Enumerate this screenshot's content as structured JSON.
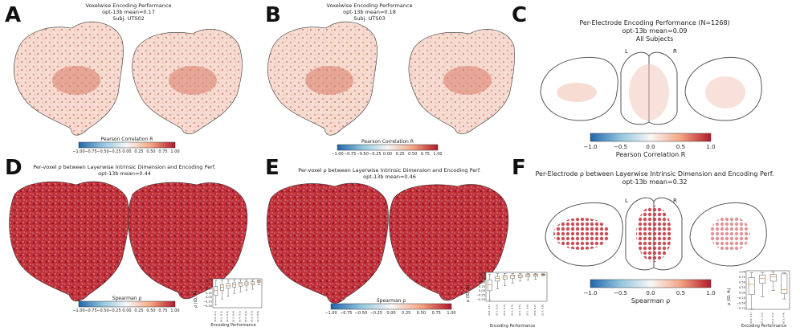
{
  "panels": {
    "A": {
      "letter": "A",
      "title": "Voxelwise Encoding Performance",
      "line2": "opt-13b mean=0.17",
      "line3": "Subj. UTS02",
      "cbar_label": "Pearson Correlation R"
    },
    "B": {
      "letter": "B",
      "title": "Voxelwise Encoding Performance",
      "line2": "opt-13b mean=0.18",
      "line3": "Subj. UTS03",
      "cbar_label": "Pearson Correlation R"
    },
    "C": {
      "letter": "C",
      "title": "Per-Electrode Encoding Performance (N=1268)",
      "line2": "opt-13b mean=0.09",
      "line3": "All Subjects",
      "cbar_label": "Pearson Correlation R",
      "L": "L",
      "R": "R"
    },
    "D": {
      "letter": "D",
      "title": "Per-voxel ρ between Layerwise Intrinsic Dimension and Encoding Perf.",
      "line2": "opt-13b mean=0.44",
      "cbar_label": "Spearman ρ"
    },
    "E": {
      "letter": "E",
      "title": "Per-voxel ρ between Layerwise Intrinsic Dimension and Encoding Perf.",
      "line2": "opt-13b mean=0.46",
      "cbar_label": "Spearman ρ"
    },
    "F": {
      "letter": "F",
      "title": "Per-Electrode ρ between Layerwise Intrinsic Dimension and Encoding Perf.",
      "line2": "opt-13b mean=0.32",
      "cbar_label": "Spearman ρ",
      "L": "L",
      "R": "R"
    }
  },
  "cbar_ticks_small": [
    "−1.00",
    "−0.75",
    "−0.50",
    "−0.25",
    "0.00",
    "0.25",
    "0.50",
    "0.75",
    "1.00"
  ],
  "cbar_ticks_large": [
    "−1.0",
    "−0.5",
    "0.0",
    "0.5",
    "1.0"
  ],
  "colors": {
    "diverging_blue": "#2166ac",
    "diverging_white": "#f7f7f7",
    "diverging_red": "#b2182b",
    "box_orange": "#e08a3c"
  },
  "chart_data": [
    {
      "type": "box",
      "panel": "D",
      "categories": [
        "[0.0, 0.1)",
        "[0.1, 0.2)",
        "[0.2, 0.3)",
        "[0.3, 0.4)",
        "[0.4, 0.5)",
        "[0.5, 0.6)",
        "[0.6, 0.7)",
        "[0.7, 0.8)"
      ],
      "xlabel": "Encoding Performance",
      "ylabel": "ρ (ID, Aᵢ)",
      "yticks": [
        "1.00",
        "0.75",
        "0.50",
        "0.25",
        "0.00",
        "−0.25",
        "−0.50"
      ],
      "ylim": [
        -0.6,
        1.05
      ],
      "boxes": [
        {
          "min": -0.45,
          "q1": 0.1,
          "median": 0.38,
          "q3": 0.6,
          "max": 0.95
        },
        {
          "min": -0.1,
          "q1": 0.38,
          "median": 0.56,
          "q3": 0.72,
          "max": 0.97
        },
        {
          "min": 0.05,
          "q1": 0.5,
          "median": 0.64,
          "q3": 0.78,
          "max": 0.98
        },
        {
          "min": 0.2,
          "q1": 0.58,
          "median": 0.7,
          "q3": 0.82,
          "max": 0.98
        },
        {
          "min": 0.3,
          "q1": 0.63,
          "median": 0.74,
          "q3": 0.85,
          "max": 0.99
        },
        {
          "min": 0.4,
          "q1": 0.68,
          "median": 0.78,
          "q3": 0.87,
          "max": 0.99
        },
        {
          "min": 0.45,
          "q1": 0.72,
          "median": 0.8,
          "q3": 0.88,
          "max": 0.99
        },
        {
          "min": 0.7,
          "q1": 0.85,
          "median": 0.9,
          "q3": 0.95,
          "max": 0.99
        }
      ]
    },
    {
      "type": "box",
      "panel": "E",
      "categories": [
        "[0.0, 0.1)",
        "[0.1, 0.2)",
        "[0.2, 0.3)",
        "[0.3, 0.4)",
        "[0.4, 0.5)",
        "[0.5, 0.6)",
        "[0.6, 0.7)",
        "[0.7, 0.8)"
      ],
      "xlabel": "Encoding Performance",
      "ylabel": "ρ (ID, Aᵢ)",
      "yticks": [
        "1.00",
        "0.75",
        "0.50",
        "0.25",
        "0.00",
        "−0.25",
        "−0.50"
      ],
      "ylim": [
        -0.6,
        1.05
      ],
      "boxes": [
        {
          "min": -0.55,
          "q1": 0.0,
          "median": 0.35,
          "q3": 0.62,
          "max": 0.95
        },
        {
          "min": 0.1,
          "q1": 0.55,
          "median": 0.7,
          "q3": 0.82,
          "max": 0.98
        },
        {
          "min": 0.3,
          "q1": 0.66,
          "median": 0.78,
          "q3": 0.87,
          "max": 0.99
        },
        {
          "min": 0.45,
          "q1": 0.72,
          "median": 0.82,
          "q3": 0.9,
          "max": 0.99
        },
        {
          "min": 0.55,
          "q1": 0.76,
          "median": 0.85,
          "q3": 0.91,
          "max": 0.99
        },
        {
          "min": 0.6,
          "q1": 0.8,
          "median": 0.87,
          "q3": 0.93,
          "max": 0.99
        },
        {
          "min": 0.65,
          "q1": 0.82,
          "median": 0.89,
          "q3": 0.94,
          "max": 0.99
        },
        {
          "min": 0.85,
          "q1": 0.9,
          "median": 0.92,
          "q3": 0.95,
          "max": 0.97
        }
      ]
    },
    {
      "type": "box",
      "panel": "F",
      "categories": [
        "[0.0, 0.1)",
        "[0.1, 0.2)",
        "[0.2, 0.3)",
        "[0.3, 0.4)"
      ],
      "xlabel": "Encoding Performance",
      "ylabel": "ρ (ID, Aᵢ)",
      "yticks": [
        "1.00",
        "0.75",
        "0.50",
        "0.25",
        "0.00",
        "−0.25",
        "−0.50",
        "−0.75"
      ],
      "ylim": [
        -0.8,
        1.05
      ],
      "boxes": [
        {
          "min": -0.8,
          "q1": -0.1,
          "median": 0.4,
          "q3": 0.72,
          "max": 0.95
        },
        {
          "min": -0.2,
          "q1": 0.45,
          "median": 0.68,
          "q3": 0.85,
          "max": 0.97
        },
        {
          "min": 0.1,
          "q1": 0.55,
          "median": 0.75,
          "q3": 0.88,
          "max": 0.98
        },
        {
          "min": -0.3,
          "q1": -0.05,
          "median": 0.15,
          "q3": 0.9,
          "max": 0.95
        }
      ]
    }
  ]
}
